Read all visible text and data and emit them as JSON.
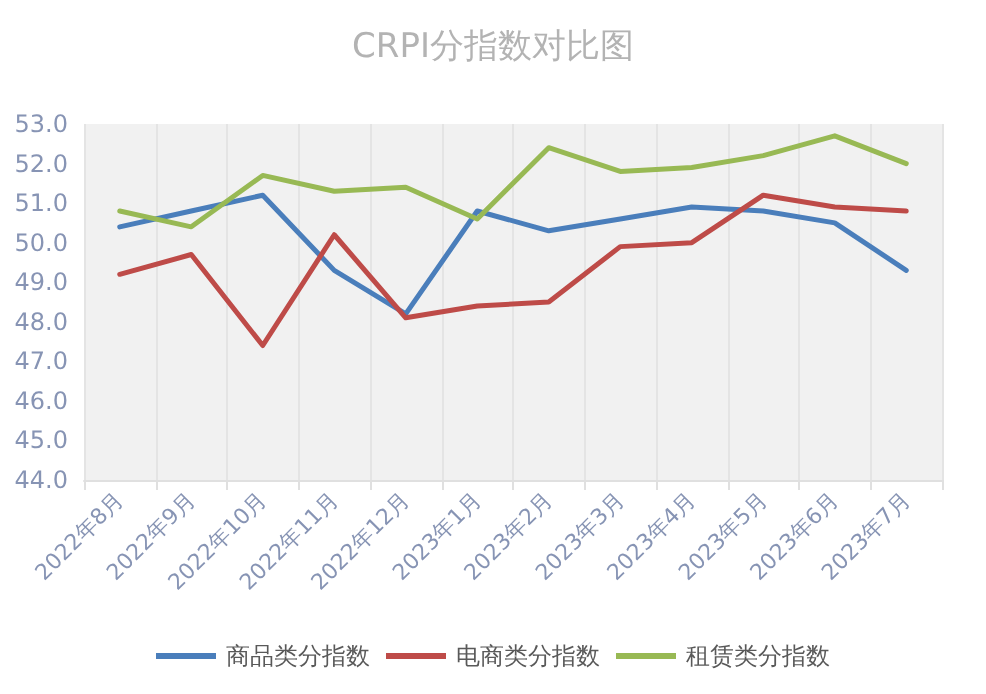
{
  "chart_data": {
    "type": "line",
    "title": "CRPI分指数对比图",
    "categories": [
      "2022年8月",
      "2022年9月",
      "2022年10月",
      "2022年11月",
      "2022年12月",
      "2023年1月",
      "2023年2月",
      "2023年3月",
      "2023年4月",
      "2023年5月",
      "2023年6月",
      "2023年7月"
    ],
    "series": [
      {
        "name": "商品类分指数",
        "color": "#4a7ebb",
        "values": [
          50.4,
          50.8,
          51.2,
          49.3,
          48.2,
          50.8,
          50.3,
          50.6,
          50.9,
          50.8,
          50.5,
          49.3
        ]
      },
      {
        "name": "电商类分指数",
        "color": "#be4b48",
        "values": [
          49.2,
          49.7,
          47.4,
          50.2,
          48.1,
          48.4,
          48.5,
          49.9,
          50.0,
          51.2,
          50.9,
          50.8
        ]
      },
      {
        "name": "租赁类分指数",
        "color": "#98b954",
        "values": [
          50.8,
          50.4,
          51.7,
          51.3,
          51.4,
          50.6,
          52.4,
          51.8,
          51.9,
          52.2,
          52.7,
          52.0
        ]
      }
    ],
    "ylim": [
      44,
      53
    ],
    "yticks": [
      {
        "value": 44,
        "label": "44.0"
      },
      {
        "value": 45,
        "label": "45.0"
      },
      {
        "value": 46,
        "label": "46.0"
      },
      {
        "value": 47,
        "label": "47.0"
      },
      {
        "value": 48,
        "label": "48.0"
      },
      {
        "value": 49,
        "label": "49.0"
      },
      {
        "value": 50,
        "label": "50.0"
      },
      {
        "value": 51,
        "label": "51.0"
      },
      {
        "value": 52,
        "label": "52.0"
      },
      {
        "value": 53,
        "label": "53.0"
      }
    ],
    "grid": "x",
    "legend": "bottom",
    "marker": "none",
    "line_style": "solid"
  }
}
